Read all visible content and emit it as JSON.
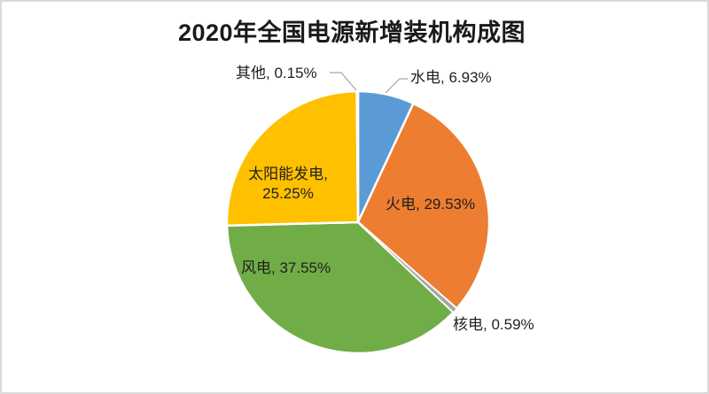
{
  "frame": {
    "background_color": "#FFFFFF",
    "border_color": "#D9D9D9"
  },
  "chart_data": {
    "type": "pie",
    "title": "2020年全国电源新增装机构成图",
    "unit": "%",
    "start_angle_deg": 0,
    "direction": "clockwise",
    "legend": "none",
    "label_color": "#1F1F1F",
    "leader_line_color": "#A6A6A6",
    "slice_gap_color": "#FFFFFF",
    "slices": [
      {
        "name": "水电",
        "value": 6.93,
        "color": "#5B9BD5",
        "label": "水电, 6.93%"
      },
      {
        "name": "火电",
        "value": 29.53,
        "color": "#ED7D31",
        "label": "火电, 29.53%"
      },
      {
        "name": "核电",
        "value": 0.59,
        "color": "#A5A5A5",
        "label": "核电, 0.59%"
      },
      {
        "name": "风电",
        "value": 37.55,
        "color": "#70AD47",
        "label": "风电, 37.55%"
      },
      {
        "name": "太阳能发电",
        "value": 25.25,
        "color": "#FFC000",
        "label": "太阳能发电,\n25.25%"
      },
      {
        "name": "其他",
        "value": 0.15,
        "color": "#4472C4",
        "label": "其他, 0.15%"
      }
    ]
  }
}
